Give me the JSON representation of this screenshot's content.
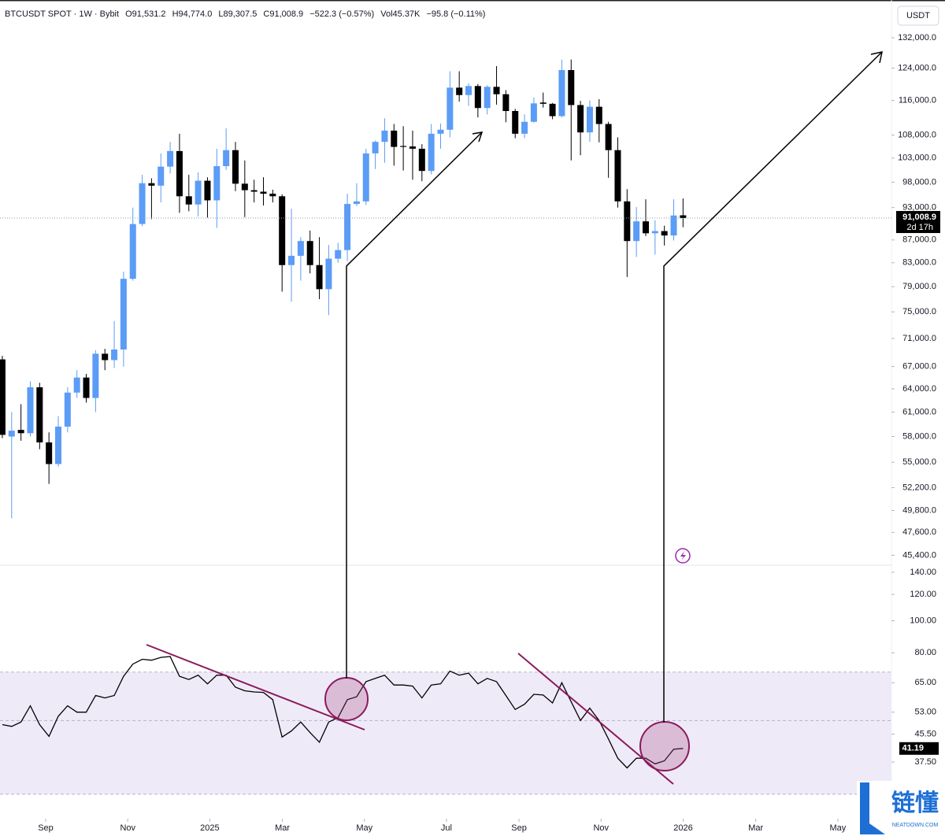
{
  "chart_data": [
    {
      "type": "candlestick",
      "title": "BTCUSDT SPOT · 1W · Bybit",
      "ohlc_labels": [
        "O91,531.2",
        "H94,774.0",
        "L89,307.5",
        "C91,008.9",
        "−522.3 (−0.57%)",
        "Vol45.37K",
        "−95.8 (−0.11%)"
      ],
      "currency": "USDT",
      "categories": [
        null,
        null,
        null,
        null,
        null,
        null,
        null,
        null,
        null,
        null,
        null,
        null,
        null,
        null,
        null,
        null,
        null,
        null,
        null,
        null,
        null,
        null,
        null,
        null,
        null,
        null,
        null,
        null,
        null,
        null,
        null,
        null,
        null,
        null,
        null,
        null,
        null,
        null,
        null,
        null,
        null,
        null,
        null,
        null,
        null,
        null,
        null,
        null,
        null,
        null,
        null,
        null,
        null,
        null,
        null,
        null,
        null,
        null,
        null,
        null,
        null,
        null,
        null,
        null,
        null,
        null,
        null,
        null,
        null,
        null,
        null,
        null,
        null,
        null
      ],
      "open": [
        68000,
        58000,
        58800,
        58400,
        64200,
        57300,
        54800,
        59200,
        63500,
        65500,
        62800,
        68800,
        67900,
        69400,
        80300,
        89900,
        97800,
        97300,
        101200,
        104500,
        95200,
        93600,
        98300,
        94400,
        101300,
        104700,
        97700,
        96400,
        96100,
        95700,
        95200,
        82600,
        84200,
        86800,
        82600,
        78600,
        83700,
        85200,
        93700,
        94200,
        104000,
        106500,
        109000,
        105600,
        105500,
        105000,
        100300,
        108300,
        109200,
        119100,
        117300,
        119500,
        114200,
        119300,
        117500,
        113500,
        108300,
        111000,
        115500,
        115200,
        112300,
        123500,
        114900,
        108600,
        114500,
        110500,
        104700,
        94200,
        86800,
        90400,
        88200,
        88600,
        87800,
        91531.2
      ],
      "high": [
        68500,
        61000,
        62000,
        65000,
        64800,
        58500,
        60500,
        64200,
        66500,
        66000,
        69300,
        69500,
        73600,
        81500,
        93000,
        99500,
        98800,
        104000,
        106500,
        108300,
        99500,
        100000,
        99000,
        105000,
        109500,
        106500,
        102500,
        98500,
        99000,
        96500,
        95600,
        92800,
        87500,
        88700,
        87500,
        86100,
        86500,
        95700,
        97800,
        105000,
        106800,
        111800,
        110500,
        110000,
        109000,
        106000,
        110500,
        110600,
        123200,
        123200,
        120200,
        120000,
        119700,
        124500,
        118500,
        114000,
        112700,
        116700,
        117900,
        115400,
        126200,
        126200,
        115900,
        116000,
        116300,
        111000,
        107500,
        96600,
        93100,
        94600,
        90600,
        89600,
        94600,
        94774
      ],
      "low": [
        57800,
        49000,
        57500,
        58000,
        56500,
        52600,
        54500,
        58500,
        62800,
        62200,
        61000,
        66500,
        66800,
        67000,
        80000,
        89500,
        90800,
        94000,
        99800,
        92000,
        92300,
        91300,
        91100,
        89200,
        100500,
        96200,
        91200,
        94000,
        93400,
        94000,
        78200,
        76600,
        80000,
        81200,
        77000,
        74500,
        83000,
        83300,
        93300,
        93500,
        100700,
        102000,
        101400,
        100400,
        98500,
        98200,
        99600,
        105000,
        107500,
        115700,
        114700,
        112000,
        112700,
        115000,
        110900,
        107300,
        107300,
        110800,
        114300,
        111600,
        112000,
        102500,
        103600,
        106500,
        106400,
        98900,
        93000,
        80600,
        84000,
        87700,
        84400,
        86000,
        86900,
        89307.5
      ],
      "close": [
        58200,
        58700,
        58400,
        64200,
        57300,
        54800,
        59200,
        63500,
        65500,
        62800,
        68800,
        67900,
        69400,
        80300,
        89900,
        97800,
        97300,
        101200,
        104500,
        95200,
        93600,
        98300,
        94400,
        101300,
        104700,
        97700,
        96400,
        96100,
        95700,
        95200,
        82600,
        84200,
        86800,
        82600,
        78600,
        83700,
        85200,
        93700,
        94200,
        104000,
        106500,
        109000,
        105400,
        105400,
        105000,
        100300,
        108300,
        109200,
        119100,
        117300,
        119500,
        114200,
        119300,
        117500,
        113500,
        108300,
        111000,
        115300,
        115200,
        112300,
        123500,
        114900,
        108600,
        114500,
        110500,
        104700,
        94200,
        86800,
        90400,
        88200,
        88600,
        87800,
        91500,
        91008.9
      ],
      "up_color": "#5b9cf6",
      "down_color": "#000000",
      "yscale": "log",
      "ylim": [
        44480,
        142700
      ],
      "yticks": [
        {
          "value": 132000,
          "label": "132,000.0"
        },
        {
          "value": 124000,
          "label": "124,000.0"
        },
        {
          "value": 116000,
          "label": "116,000.0"
        },
        {
          "value": 108000,
          "label": "108,000.0"
        },
        {
          "value": 103000,
          "label": "103,000.0"
        },
        {
          "value": 98000,
          "label": "98,000.0"
        },
        {
          "value": 93000,
          "label": "93,000.0"
        },
        {
          "value": 87000,
          "label": "87,000.0"
        },
        {
          "value": 83000,
          "label": "83,000.0"
        },
        {
          "value": 79000,
          "label": "79,000.0"
        },
        {
          "value": 75000,
          "label": "75,000.0"
        },
        {
          "value": 71000,
          "label": "71,000.0"
        },
        {
          "value": 67000,
          "label": "67,000.0"
        },
        {
          "value": 64000,
          "label": "64,000.0"
        },
        {
          "value": 61000,
          "label": "61,000.0"
        },
        {
          "value": 58000,
          "label": "58,000.0"
        },
        {
          "value": 55000,
          "label": "55,000.0"
        },
        {
          "value": 52200,
          "label": "52,200.0"
        },
        {
          "value": 49800,
          "label": "49,800.0"
        },
        {
          "value": 47600,
          "label": "47,600.0"
        },
        {
          "value": 45400,
          "label": "45,400.0"
        }
      ],
      "xlim": [
        -0.25,
        95.35
      ],
      "last_price": {
        "value": 91008.9,
        "label": "91,008.9"
      },
      "countdown": "2d 17h"
    },
    {
      "type": "line",
      "values": [
        48.6,
        48,
        49.5,
        55.4,
        48.6,
        44.8,
        51.5,
        55.4,
        53,
        53,
        59.5,
        58.5,
        59.5,
        68,
        74,
        76.5,
        76,
        77.5,
        78,
        68,
        66.5,
        68.5,
        64.5,
        68.5,
        68.5,
        63,
        61.5,
        61,
        60.8,
        57.8,
        44.6,
        46.5,
        49.5,
        46,
        43,
        49.5,
        51,
        57.8,
        59,
        65.5,
        67,
        68.5,
        64,
        64,
        63.5,
        58.5,
        64,
        64.5,
        70.5,
        68.5,
        69.5,
        64.5,
        67,
        65.5,
        59.5,
        54,
        56,
        60,
        59.7,
        56.5,
        65,
        57,
        50,
        54.5,
        50,
        44,
        38.5,
        36,
        38.5,
        38.5,
        37,
        37.8,
        41,
        41.19
      ],
      "color": "#000000",
      "yscale": "log",
      "ylim": [
        25.3,
        147
      ],
      "yticks": [
        {
          "value": 140,
          "label": "140.00"
        },
        {
          "value": 120,
          "label": "120.00"
        },
        {
          "value": 100,
          "label": "100.00"
        },
        {
          "value": 80,
          "label": "80.00"
        },
        {
          "value": 65,
          "label": "65.00"
        },
        {
          "value": 53,
          "label": "53.00"
        },
        {
          "value": 45.5,
          "label": "45.50"
        },
        {
          "value": 37.5,
          "label": "37.50"
        }
      ],
      "levels": [
        70,
        50,
        30
      ],
      "band_color": "#efeaf8",
      "xlim": [
        -0.25,
        95.35
      ],
      "xticks": [
        {
          "value": 4.65,
          "label": "Sep"
        },
        {
          "value": 13.45,
          "label": "Nov"
        },
        {
          "value": 22.25,
          "label": "2025"
        },
        {
          "value": 30.03,
          "label": "Mar"
        },
        {
          "value": 38.83,
          "label": "May"
        },
        {
          "value": 47.63,
          "label": "Jul"
        },
        {
          "value": 55.41,
          "label": "Sep"
        },
        {
          "value": 64.21,
          "label": "Nov"
        },
        {
          "value": 73.01,
          "label": "2026"
        },
        {
          "value": 80.8,
          "label": "Mar"
        },
        {
          "value": 89.6,
          "label": "May"
        }
      ]
    }
  ],
  "watermark": {
    "brand": "链懂",
    "site": "NEATDOWN.COM"
  }
}
